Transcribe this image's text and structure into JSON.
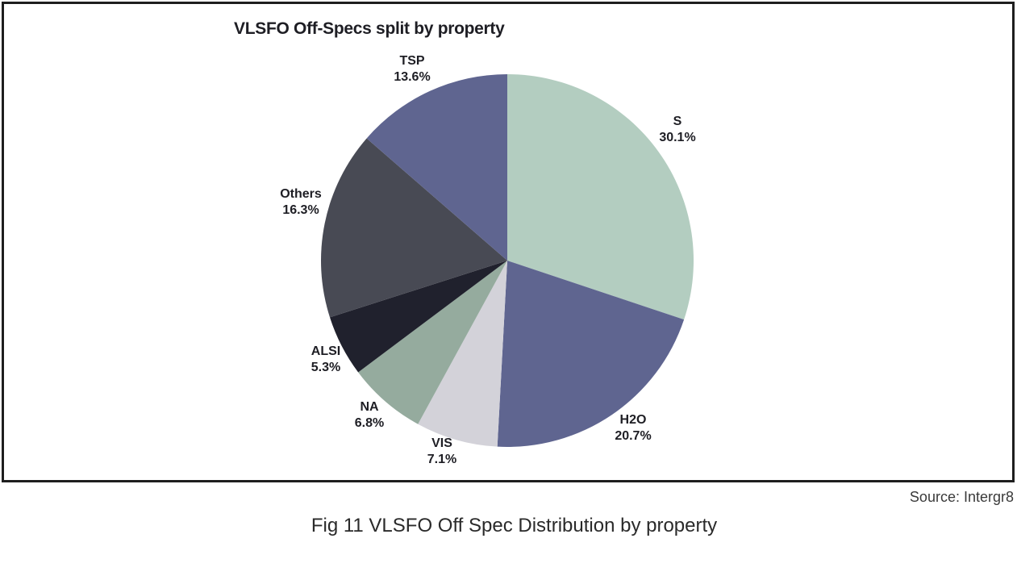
{
  "chart_data": {
    "type": "pie",
    "title": "VLSFO Off-Specs split by property",
    "slices": [
      {
        "label": "S",
        "value": 30.1,
        "pct_label": "30.1%",
        "color": "#b3cdc0"
      },
      {
        "label": "H2O",
        "value": 20.7,
        "pct_label": "20.7%",
        "color": "#5f6590"
      },
      {
        "label": "VIS",
        "value": 7.1,
        "pct_label": "7.1%",
        "color": "#d3d2d9"
      },
      {
        "label": "NA",
        "value": 6.8,
        "pct_label": "6.8%",
        "color": "#95ab9e"
      },
      {
        "label": "ALSI",
        "value": 5.3,
        "pct_label": "5.3%",
        "color": "#20212d"
      },
      {
        "label": "Others",
        "value": 16.3,
        "pct_label": "16.3%",
        "color": "#484a54"
      },
      {
        "label": "TSP",
        "value": 13.6,
        "pct_label": "13.6%",
        "color": "#5f6590"
      }
    ],
    "start_angle": "12 o'clock",
    "direction": "clockwise"
  },
  "source": "Source: Intergr8",
  "caption": "Fig 11 VLSFO Off Spec Distribution by property"
}
